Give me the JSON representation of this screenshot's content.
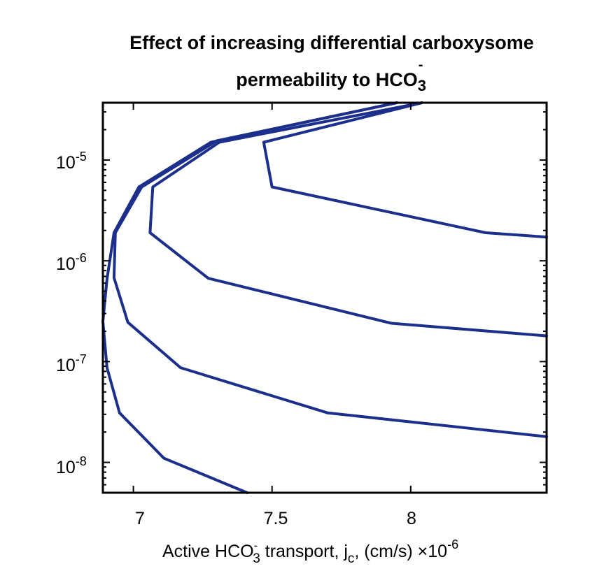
{
  "chart_data": {
    "type": "line",
    "title_line1": "Effect of increasing differential carboxysome",
    "title_line2_text": "permeability to HCO",
    "title_line2_sup": "-",
    "title_line2_sub": "3",
    "xlabel_prefix": "Active HCO",
    "xlabel_sup": "-",
    "xlabel_sub": "3",
    "xlabel_middle": " transport, j",
    "xlabel_sub2": "c",
    "xlabel_suffix": ", (cm/s) ",
    "x_multiplier_prefix": "×10",
    "x_multiplier_exp": "-6",
    "x_tick_labels": [
      "7",
      "7.5",
      "8"
    ],
    "x_ticks": [
      7.0,
      7.5,
      8.0
    ],
    "y_tick_labels": [
      {
        "base": "10",
        "exp": "-5"
      },
      {
        "base": "10",
        "exp": "-6"
      },
      {
        "base": "10",
        "exp": "-7"
      },
      {
        "base": "10",
        "exp": "-8"
      }
    ],
    "y_ticks": [
      1e-05,
      1e-06,
      1e-07,
      1e-08
    ],
    "xlim": [
      6.89,
      8.49
    ],
    "ylim": [
      5e-09,
      3.7e-05
    ],
    "yscale": "log",
    "grid": false,
    "line_color": "#1c2f8c",
    "series": [
      {
        "points": [
          [
            7.41,
            5e-09
          ],
          [
            7.11,
            1.1e-08
          ],
          [
            6.95,
            3.1e-08
          ],
          [
            6.905,
            8.7e-08
          ],
          [
            6.89,
            2.5e-07
          ],
          [
            6.905,
            6.6e-07
          ],
          [
            6.93,
            1.9e-06
          ],
          [
            7.02,
            5.4e-06
          ],
          [
            7.28,
            1.5e-05
          ],
          [
            7.95,
            3.7e-05
          ]
        ]
      },
      {
        "points": [
          [
            8.49,
            1.8e-08
          ],
          [
            7.7,
            3.1e-08
          ],
          [
            7.17,
            8.7e-08
          ],
          [
            6.98,
            2.45e-07
          ],
          [
            6.93,
            6.8e-07
          ],
          [
            6.935,
            1.9e-06
          ],
          [
            7.03,
            5.4e-06
          ],
          [
            7.3,
            1.55e-05
          ],
          [
            7.95,
            3.7e-05
          ]
        ]
      },
      {
        "points": [
          [
            8.49,
            1.8e-07
          ],
          [
            7.93,
            2.4e-07
          ],
          [
            7.27,
            6.7e-07
          ],
          [
            7.06,
            1.9e-06
          ],
          [
            7.07,
            5.4e-06
          ],
          [
            7.31,
            1.5e-05
          ],
          [
            8.04,
            3.7e-05
          ]
        ]
      },
      {
        "points": [
          [
            8.49,
            1.72e-06
          ],
          [
            8.27,
            1.9e-06
          ],
          [
            7.5,
            5.4e-06
          ],
          [
            7.47,
            1.5e-05
          ],
          [
            8.04,
            3.7e-05
          ]
        ]
      }
    ]
  }
}
